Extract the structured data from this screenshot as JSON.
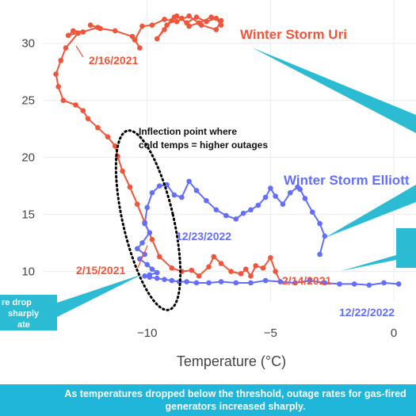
{
  "chart_data": {
    "type": "line",
    "title": "",
    "xlabel": "Temperature (°C)",
    "ylabel": "",
    "xlim": [
      -14.2,
      0.9
    ],
    "ylim": [
      7.4,
      33.8
    ],
    "x_ticks": [
      -10,
      -5,
      0
    ],
    "x_tick_labels": [
      "−10",
      "−5",
      "0"
    ],
    "y_ticks": [
      10,
      15,
      20,
      25,
      30
    ],
    "y_tick_labels": [
      "10",
      "15",
      "20",
      "25",
      "30"
    ],
    "grid": true,
    "legend": "none",
    "series": [
      {
        "name": "Winter Storm Uri",
        "color": "#ef553b",
        "x": [
          -7.0,
          -7.2,
          -7.6,
          -8.0,
          -8.4,
          -8.8,
          -9.0,
          -9.3,
          -9.6,
          -9.2,
          -8.9,
          -8.6,
          -8.3,
          -7.9,
          -7.4,
          -7.0,
          -7.2,
          -7.8,
          -8.3,
          -8.8,
          -9.3,
          -9.8,
          -10.2,
          -10.5,
          -10.3,
          -10.6,
          -11.3,
          -11.9,
          -12.3,
          -12.0,
          -12.6,
          -13.0,
          -13.2,
          -12.8,
          -13.3,
          -13.5,
          -13.7,
          -13.6,
          -13.4,
          -12.9,
          -12.6,
          -12.4,
          -12.0,
          -11.6,
          -11.3,
          -11.2,
          -11.0,
          -10.7,
          -10.4,
          -10.1,
          -9.8,
          -9.5,
          -9.0,
          -8.6,
          -8.2,
          -7.9,
          -7.5,
          -7.3,
          -7.0,
          -6.6,
          -6.2,
          -6.0,
          -5.8,
          -5.6,
          -5.3,
          -5.0,
          -4.8,
          -4.6
        ],
        "y": [
          31.6,
          32.2,
          31.9,
          32.3,
          31.8,
          32.4,
          32.0,
          31.2,
          30.4,
          31.6,
          32.3,
          32.2,
          31.5,
          31.8,
          32.3,
          32.0,
          31.2,
          31.6,
          32.4,
          31.9,
          32.1,
          31.6,
          31.5,
          30.3,
          29.6,
          30.6,
          31.1,
          31.3,
          31.6,
          31.4,
          31.0,
          31.1,
          30.7,
          30.9,
          29.6,
          28.5,
          27.3,
          26.2,
          25.0,
          24.6,
          24.1,
          23.4,
          22.6,
          21.8,
          21.0,
          20.1,
          18.8,
          17.4,
          15.9,
          14.3,
          12.8,
          11.3,
          10.3,
          10.0,
          10.1,
          9.6,
          10.4,
          11.3,
          10.7,
          10.0,
          9.8,
          10.2,
          9.6,
          10.5,
          10.3,
          11.2,
          10.0,
          9.1
        ]
      },
      {
        "name": "Winter Storm Elliott",
        "color": "#636efa",
        "x": [
          -3.0,
          -2.8,
          -3.0,
          -3.3,
          -3.6,
          -3.8,
          -3.9,
          -4.2,
          -4.5,
          -4.8,
          -5.0,
          -5.2,
          -5.5,
          -5.8,
          -6.1,
          -6.4,
          -6.8,
          -7.2,
          -7.6,
          -8.0,
          -8.3,
          -8.6,
          -8.9,
          -9.2,
          -9.5,
          -9.8,
          -10.0,
          -10.1,
          -9.9,
          -10.2,
          -10.4,
          -10.1,
          -10.3,
          -10.0,
          -9.8,
          -9.6,
          -9.9,
          -10.1,
          -9.9,
          -9.6,
          -9.3,
          -9.0,
          -8.7,
          -8.4,
          -8.0,
          -7.5,
          -7.0,
          -6.4,
          -5.8,
          -5.2,
          -4.6,
          -4.0,
          -3.4,
          -2.8,
          -2.2,
          -1.6,
          -1.0,
          -0.4,
          0.2
        ],
        "y": [
          11.5,
          13.1,
          14.2,
          15.2,
          16.4,
          17.2,
          17.4,
          16.9,
          15.9,
          16.6,
          17.3,
          16.5,
          15.8,
          15.4,
          15.1,
          14.6,
          14.9,
          15.4,
          16.2,
          17.1,
          17.9,
          16.5,
          16.7,
          17.6,
          17.5,
          16.9,
          15.6,
          14.2,
          13.4,
          12.5,
          12.0,
          11.5,
          11.1,
          10.6,
          10.2,
          9.9,
          9.7,
          9.6,
          9.5,
          9.4,
          9.3,
          9.2,
          9.1,
          9.1,
          9.0,
          9.0,
          9.1,
          9.0,
          9.0,
          9.2,
          9.1,
          9.0,
          9.2,
          9.0,
          8.9,
          8.9,
          8.8,
          9.0,
          8.9
        ]
      }
    ],
    "annotations": {
      "uri_label": "Winter Storm Uri",
      "elliott_label": "Winter Storm Elliott",
      "date_2_16": "2/16/2021",
      "date_2_15": "2/15/2021",
      "date_2_14": "2/14/2021",
      "date_12_23": "12/23/2022",
      "date_12_22": "12/22/2022",
      "inflection_line1": "Inflection point where",
      "inflection_line2": "cold temps = higher outages",
      "left_callout_line1": "re drop",
      "left_callout_line2": "sharply",
      "left_callout_line3": "ate"
    },
    "caption_line1": "As temperatures dropped below the threshold, outage rates for gas-fired",
    "caption_line2": "generators increased sharply."
  },
  "colors": {
    "uri": "#ef553b",
    "elliott": "#636efa",
    "callout": "#2bbcd4",
    "caption_bg": "#1fb6d9",
    "grid": "#ebebeb"
  }
}
